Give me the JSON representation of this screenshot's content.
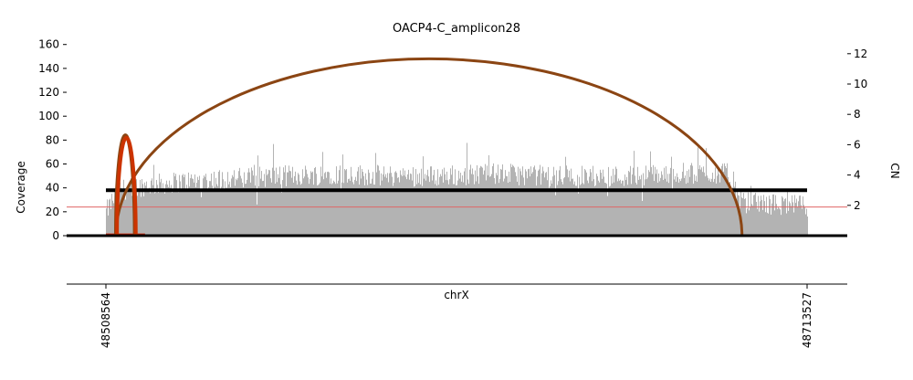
{
  "chart_data": {
    "type": "bar",
    "title": "OACP4-C_amplicon28",
    "xlabel": "chrX",
    "ylabel_left": "Coverage",
    "ylabel_right": "CN",
    "x_range": [
      48508564,
      48713527
    ],
    "x_tick_labels": [
      "48508564",
      "48713527"
    ],
    "y_left_range": [
      0,
      160
    ],
    "y_left_ticks": [
      0,
      20,
      40,
      60,
      80,
      100,
      120,
      140,
      160
    ],
    "y_right_ticks": [
      2,
      4,
      6,
      8,
      10,
      12
    ],
    "grid": false,
    "coverage_color": "#b3b3b3",
    "coverage_profile": [
      {
        "x": 48508564,
        "y": 20
      },
      {
        "x": 48512000,
        "y": 38
      },
      {
        "x": 48520000,
        "y": 42
      },
      {
        "x": 48530000,
        "y": 45
      },
      {
        "x": 48545000,
        "y": 48
      },
      {
        "x": 48560000,
        "y": 50
      },
      {
        "x": 48575000,
        "y": 52
      },
      {
        "x": 48590000,
        "y": 50
      },
      {
        "x": 48605000,
        "y": 50
      },
      {
        "x": 48620000,
        "y": 52
      },
      {
        "x": 48640000,
        "y": 50
      },
      {
        "x": 48660000,
        "y": 50
      },
      {
        "x": 48675000,
        "y": 52
      },
      {
        "x": 48690000,
        "y": 52
      },
      {
        "x": 48694000,
        "y": 28
      },
      {
        "x": 48705000,
        "y": 26
      },
      {
        "x": 48713527,
        "y": 25
      }
    ],
    "cn_segments": [
      {
        "start": 48508564,
        "end": 48713527,
        "cn": 3.0,
        "color": "#000000"
      },
      {
        "start": 48508564,
        "end": 48520000,
        "cn": 0.05,
        "color": "#cc2200"
      }
    ],
    "reference_line": {
      "y": 24,
      "color": "#e06666"
    },
    "breakpoint_arcs": [
      {
        "start": 48511500,
        "end": 48694500,
        "peak_coverage": 148,
        "color": "#8b4513"
      },
      {
        "start": 48511500,
        "end": 48517000,
        "peak_coverage": 84,
        "color": "#8b4513"
      },
      {
        "start": 48511800,
        "end": 48517300,
        "peak_coverage": 82,
        "color": "#cc3300"
      }
    ]
  }
}
